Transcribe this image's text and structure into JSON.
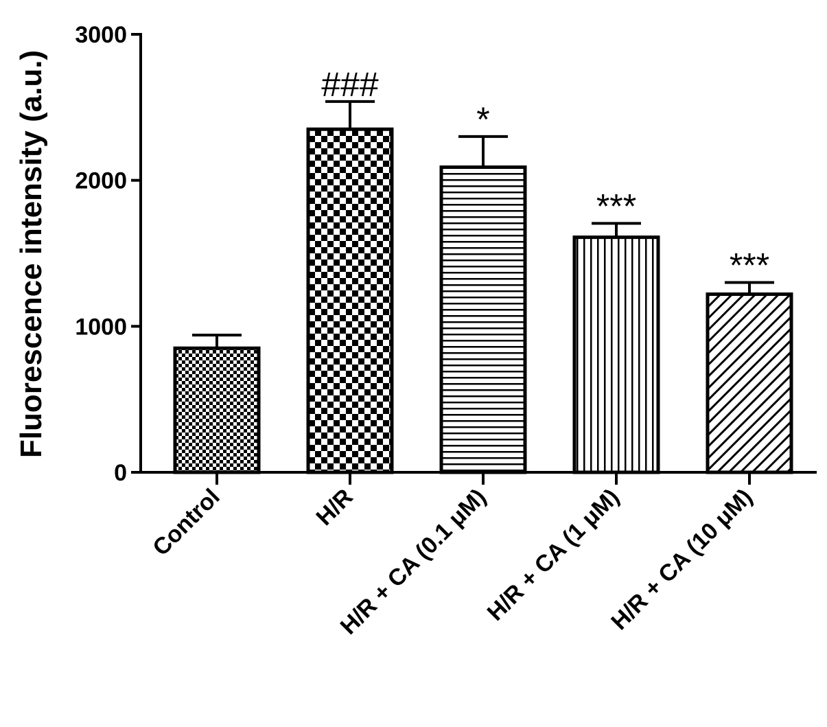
{
  "chart_data": {
    "type": "bar",
    "title": "",
    "xlabel": "",
    "ylabel": "Fluorescence intensity (a.u.)",
    "ylim": [
      0,
      3000
    ],
    "yticks": [
      0,
      1000,
      2000,
      3000
    ],
    "grid": false,
    "categories": [
      "Control",
      "H/R",
      "H/R + CA (0.1 μM)",
      "H/R + CA (1 μM)",
      "H/R + CA (10 μM)"
    ],
    "values": [
      850,
      2350,
      2090,
      1610,
      1220
    ],
    "errors": [
      90,
      190,
      210,
      95,
      80
    ],
    "annotations": [
      "",
      "###",
      "*",
      "***",
      "***"
    ],
    "patterns": [
      "fine-checker",
      "coarse-checker",
      "horizontal-lines",
      "vertical-lines",
      "diagonal-lines"
    ]
  }
}
